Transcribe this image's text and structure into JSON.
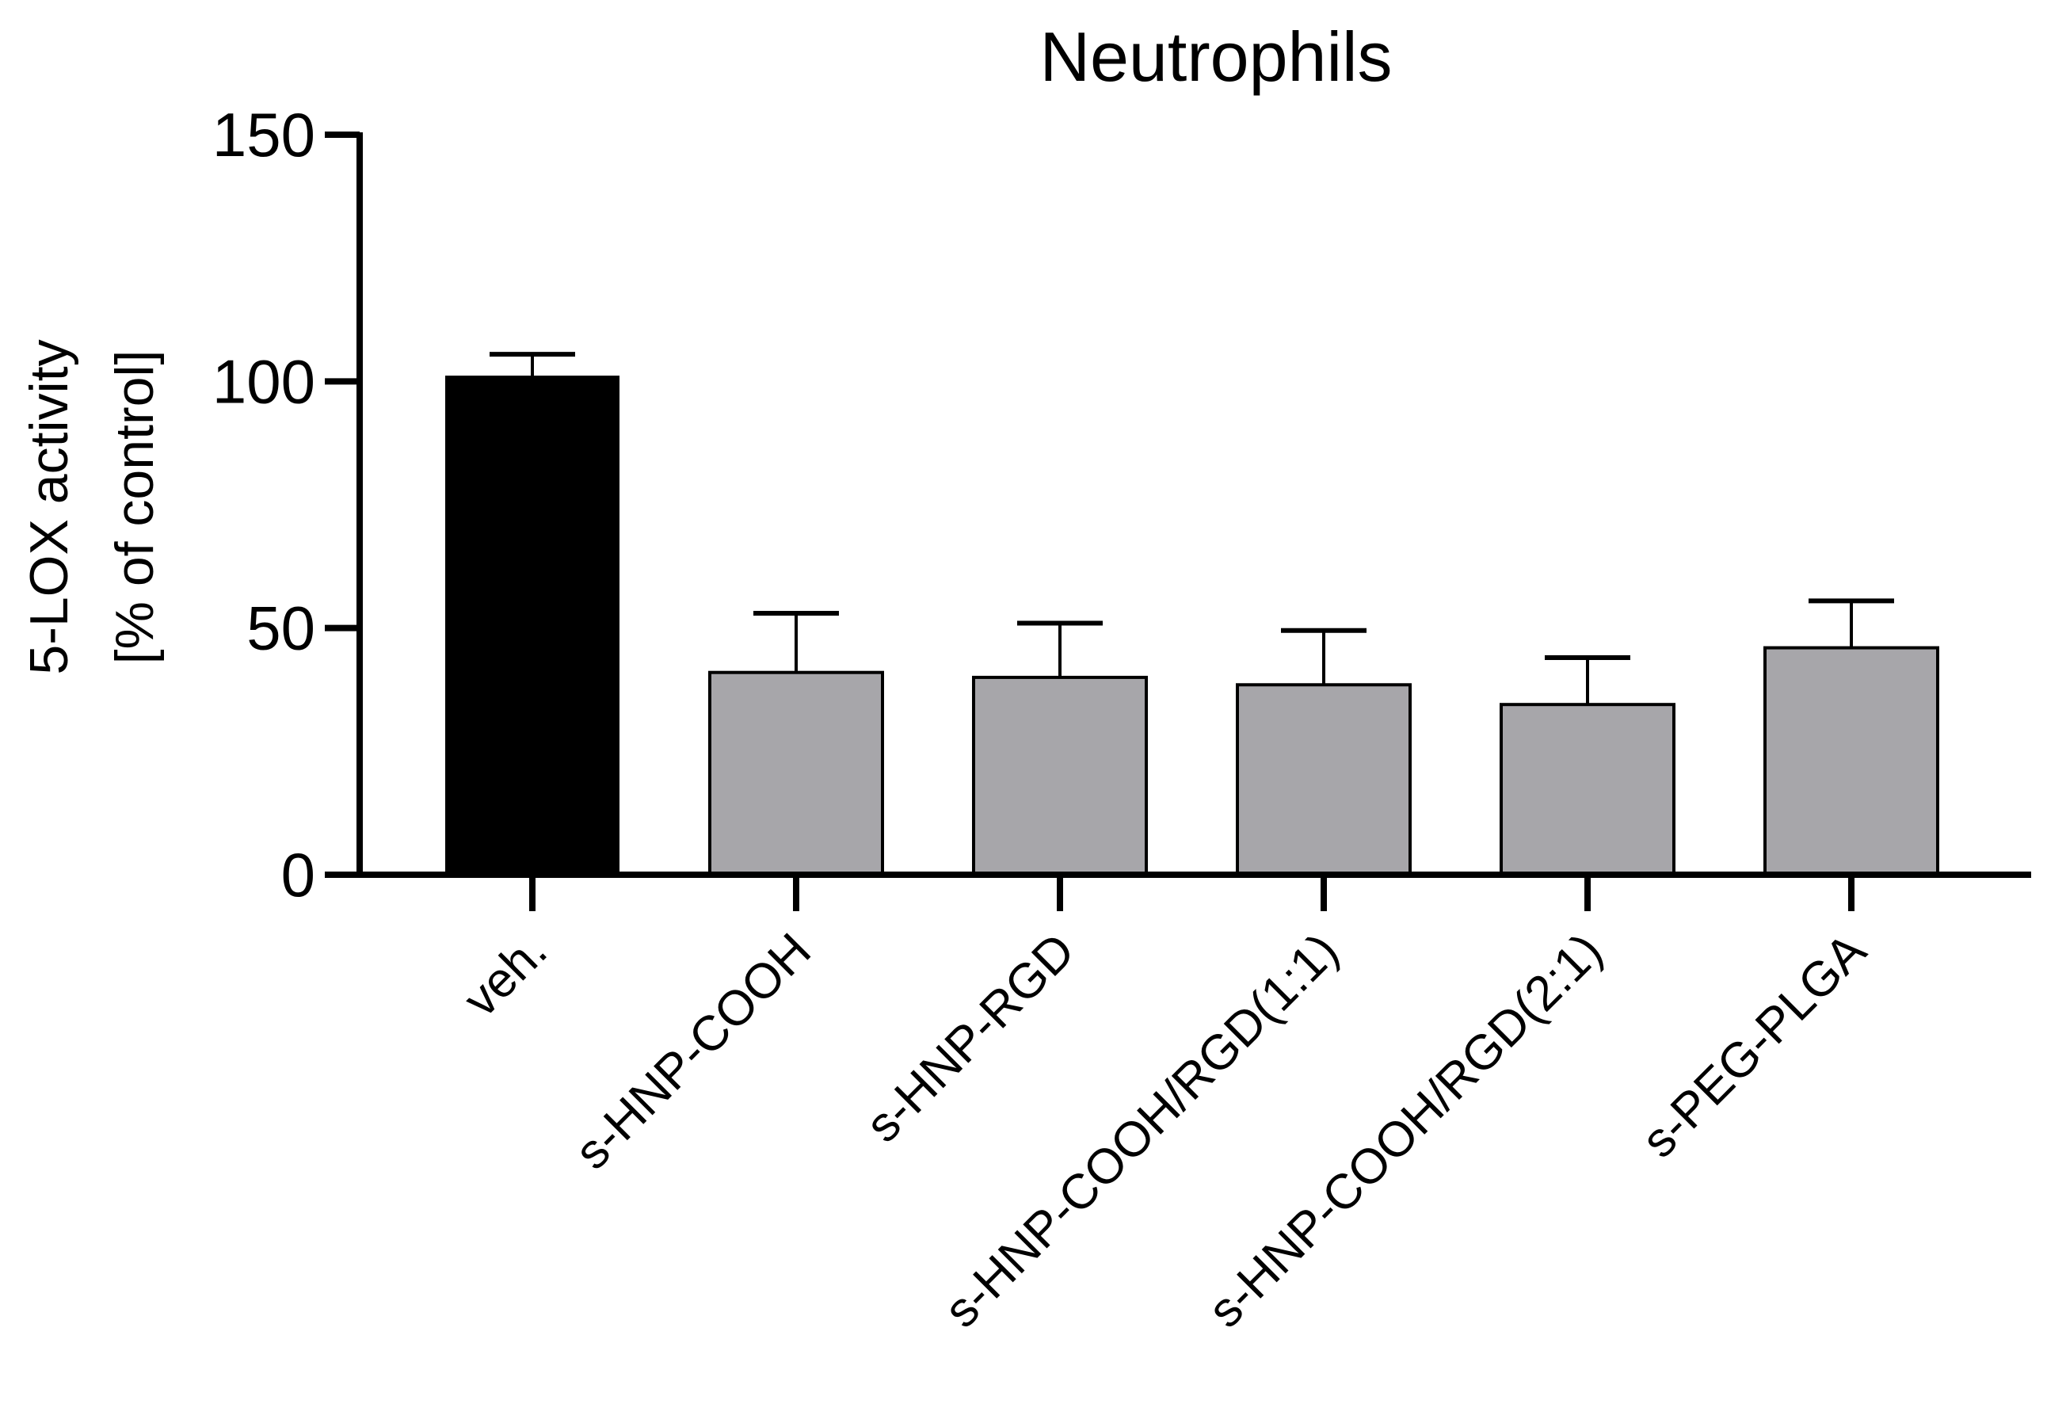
{
  "chart_data": {
    "type": "bar",
    "title": "Neutrophils",
    "xlabel": "",
    "ylabel_lines": [
      "5-LOX activity",
      "[% of control]"
    ],
    "ylim": [
      0,
      150
    ],
    "yticks": [
      0,
      50,
      100,
      150
    ],
    "grid": false,
    "categories": [
      "veh.",
      "s-HNP-COOH",
      "s-HNP-RGD",
      "s-HNP-COOH/RGD(1:1)",
      "s-HNP-COOH/RGD(2:1)",
      "s-PEG-PLGA"
    ],
    "values": [
      101,
      41,
      40,
      38.5,
      34.5,
      46
    ],
    "error_upper": [
      105.5,
      53,
      51,
      49.5,
      44,
      55.5
    ],
    "bar_colors": [
      "#000000",
      "#a7a6aa",
      "#a7a6aa",
      "#a7a6aa",
      "#a7a6aa",
      "#a7a6aa"
    ]
  }
}
